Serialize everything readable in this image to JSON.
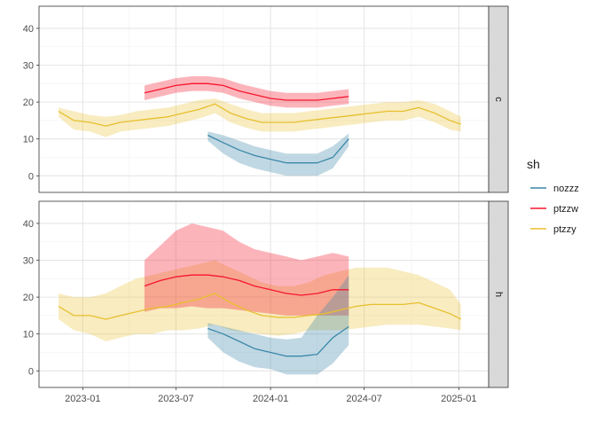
{
  "chart_data": {
    "type": "line",
    "title": "",
    "xlabel": "",
    "ylabel": "",
    "legend": {
      "title": "sh",
      "position": "right",
      "entries": [
        {
          "name": "nozzz",
          "color": "#3A87A9"
        },
        {
          "name": "ptzzw",
          "color": "#F5162B"
        },
        {
          "name": "ptzzy",
          "color": "#E8BF2E"
        }
      ]
    },
    "x_axis": {
      "type": "date",
      "range": [
        "2022-10-08",
        "2025-02-28"
      ],
      "ticks": [
        "2023-01",
        "2023-07",
        "2024-01",
        "2024-07",
        "2025-01"
      ]
    },
    "y_axis": {
      "range": [
        -4.5,
        46
      ],
      "ticks": [
        0,
        10,
        20,
        30,
        40
      ]
    },
    "grid": true,
    "facets": [
      {
        "label": "c",
        "series": [
          {
            "name": "ptzzy",
            "x": [
              "2022-11-15",
              "2022-12-15",
              "2023-01-15",
              "2023-02-15",
              "2023-03-15",
              "2023-04-15",
              "2023-05-15",
              "2023-06-15",
              "2023-07-15",
              "2023-08-15",
              "2023-09-15",
              "2023-10-15",
              "2023-11-15",
              "2023-12-15",
              "2024-01-15",
              "2024-02-15",
              "2024-03-15",
              "2024-04-15",
              "2024-05-15",
              "2024-06-15",
              "2024-07-15",
              "2024-08-15",
              "2024-09-15",
              "2024-10-15",
              "2024-11-15",
              "2024-12-15",
              "2025-01-05"
            ],
            "y": [
              17.5,
              15,
              14.5,
              13.5,
              14.5,
              15,
              15.5,
              16,
              17,
              18,
              19.5,
              17,
              15.5,
              14.5,
              14.5,
              14.5,
              15,
              15.5,
              16,
              16.5,
              17,
              17.5,
              17.5,
              18.5,
              17,
              15,
              14
            ],
            "lower": [
              16,
              12.5,
              12,
              10.5,
              12,
              12.5,
              13,
              13.5,
              14.5,
              15.5,
              17,
              14.5,
              13,
              12,
              12,
              12,
              12.5,
              13,
              13.5,
              14,
              14.5,
              15,
              15,
              16,
              14.5,
              12.5,
              12
            ],
            "upper": [
              18.5,
              17.5,
              16.5,
              16,
              16.5,
              17.5,
              18,
              18.5,
              19.5,
              20.5,
              21,
              19.5,
              18,
              17,
              17,
              17,
              17.5,
              18,
              18.5,
              19,
              19.5,
              20,
              20,
              20.5,
              19.5,
              17.5,
              16
            ]
          },
          {
            "name": "ptzzw",
            "x": [
              "2023-05-01",
              "2023-06-01",
              "2023-07-01",
              "2023-08-01",
              "2023-09-01",
              "2023-10-01",
              "2023-11-01",
              "2023-12-01",
              "2024-01-01",
              "2024-02-01",
              "2024-03-01",
              "2024-04-01",
              "2024-05-01",
              "2024-06-01"
            ],
            "y": [
              22.5,
              23.5,
              24.5,
              25,
              25,
              24.5,
              23,
              22,
              21,
              20.5,
              20.5,
              20.5,
              21,
              21.5
            ],
            "lower": [
              20.5,
              21.5,
              22.5,
              23,
              23,
              22.5,
              21,
              20,
              19,
              18.5,
              18.5,
              18.5,
              19,
              19.5
            ],
            "upper": [
              24.5,
              25.5,
              26.5,
              27,
              27,
              26.5,
              25,
              24,
              23,
              22.5,
              22.5,
              22.5,
              23,
              23.5
            ]
          },
          {
            "name": "nozzz",
            "x": [
              "2023-09-01",
              "2023-10-01",
              "2023-11-01",
              "2023-12-01",
              "2024-01-01",
              "2024-02-01",
              "2024-03-01",
              "2024-04-01",
              "2024-05-01",
              "2024-06-01"
            ],
            "y": [
              11,
              9,
              7,
              5.5,
              4.5,
              3.5,
              3.5,
              3.5,
              5,
              10
            ],
            "lower": [
              9.5,
              6,
              3.5,
              2,
              1,
              0,
              0,
              0,
              2,
              8
            ],
            "upper": [
              12,
              11,
              9.5,
              8,
              7,
              6,
              6,
              6,
              8,
              11.5
            ]
          }
        ]
      },
      {
        "label": "h",
        "series": [
          {
            "name": "ptzzy",
            "x": [
              "2022-11-15",
              "2022-12-15",
              "2023-01-15",
              "2023-02-15",
              "2023-03-15",
              "2023-04-15",
              "2023-05-15",
              "2023-06-15",
              "2023-07-15",
              "2023-08-15",
              "2023-09-15",
              "2023-10-15",
              "2023-11-15",
              "2023-12-15",
              "2024-01-15",
              "2024-02-15",
              "2024-03-15",
              "2024-04-15",
              "2024-05-15",
              "2024-06-15",
              "2024-07-15",
              "2024-08-15",
              "2024-09-15",
              "2024-10-15",
              "2024-11-15",
              "2024-12-15",
              "2025-01-05"
            ],
            "y": [
              17.5,
              15,
              15,
              14,
              15,
              16,
              17,
              17.5,
              18.5,
              19.5,
              21,
              18.5,
              16.5,
              15,
              14.5,
              14.5,
              15,
              15.5,
              16.5,
              17.5,
              18,
              18,
              18,
              18.5,
              17,
              15.5,
              14
            ],
            "lower": [
              14,
              11,
              10,
              8,
              9,
              10,
              10,
              11,
              11,
              11.5,
              12.5,
              11,
              10.5,
              10,
              9.5,
              10,
              11,
              11,
              11,
              11.5,
              12,
              12.5,
              12.5,
              12.5,
              12,
              11.5,
              11
            ],
            "upper": [
              21,
              20,
              20,
              21,
              23,
              25,
              26,
              27,
              28,
              29,
              30,
              28,
              26,
              24,
              23,
              23,
              24,
              26,
              27,
              28,
              28,
              28,
              27,
              26,
              24,
              22,
              18
            ]
          },
          {
            "name": "ptzzw",
            "x": [
              "2023-05-01",
              "2023-06-01",
              "2023-07-01",
              "2023-08-01",
              "2023-09-01",
              "2023-10-01",
              "2023-11-01",
              "2023-12-01",
              "2024-01-01",
              "2024-02-01",
              "2024-03-01",
              "2024-04-01",
              "2024-05-01",
              "2024-06-01"
            ],
            "y": [
              23,
              24.5,
              25.5,
              26,
              26,
              25.5,
              24.5,
              23,
              22,
              21,
              20.5,
              21,
              22,
              22
            ],
            "lower": [
              16,
              17,
              17,
              17.5,
              17,
              17,
              16.5,
              16,
              15.5,
              15,
              15,
              15,
              15,
              15
            ],
            "upper": [
              30,
              34,
              38,
              40,
              39,
              38,
              35,
              33,
              32,
              31,
              30,
              31,
              32,
              31
            ]
          },
          {
            "name": "nozzz",
            "x": [
              "2023-09-01",
              "2023-10-01",
              "2023-11-01",
              "2023-12-01",
              "2024-01-01",
              "2024-02-01",
              "2024-03-01",
              "2024-04-01",
              "2024-05-01",
              "2024-06-01"
            ],
            "y": [
              11.5,
              10,
              8,
              6,
              5,
              4,
              4,
              4.5,
              9,
              12
            ],
            "lower": [
              9,
              5,
              2.5,
              1,
              0.5,
              -1,
              -1,
              -1,
              2,
              7
            ],
            "upper": [
              13,
              12,
              11,
              10,
              9,
              8.5,
              9,
              15,
              20,
              26
            ]
          }
        ]
      }
    ]
  }
}
